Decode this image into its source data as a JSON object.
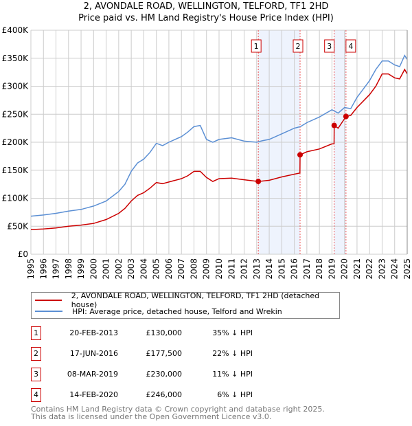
{
  "chart_data": {
    "type": "line",
    "title": "2, AVONDALE ROAD, WELLINGTON, TELFORD, TF1 2HD",
    "subtitle": "Price paid vs. HM Land Registry's House Price Index (HPI)",
    "xlim": [
      1995,
      2025
    ],
    "ylim": [
      0,
      400000
    ],
    "yticks": [
      {
        "v": 0,
        "label": "£0"
      },
      {
        "v": 50000,
        "label": "£50K"
      },
      {
        "v": 100000,
        "label": "£100K"
      },
      {
        "v": 150000,
        "label": "£150K"
      },
      {
        "v": 200000,
        "label": "£200K"
      },
      {
        "v": 250000,
        "label": "£250K"
      },
      {
        "v": 300000,
        "label": "£300K"
      },
      {
        "v": 350000,
        "label": "£350K"
      },
      {
        "v": 400000,
        "label": "£400K"
      }
    ],
    "xticks": [
      "1995",
      "1996",
      "1997",
      "1998",
      "1999",
      "2000",
      "2001",
      "2002",
      "2003",
      "2004",
      "2005",
      "2006",
      "2007",
      "2008",
      "2009",
      "2010",
      "2011",
      "2012",
      "2013",
      "2014",
      "2015",
      "2016",
      "2017",
      "2018",
      "2019",
      "2020",
      "2021",
      "2022",
      "2023",
      "2024",
      "2025"
    ],
    "grid": true,
    "series": [
      {
        "name": "2, AVONDALE ROAD, WELLINGTON, TELFORD, TF1 2HD (detached house)",
        "color": "#cc0000",
        "x": [
          1995,
          1996,
          1997,
          1998,
          1999,
          2000,
          2001,
          2002,
          2002.5,
          2003,
          2003.5,
          2004,
          2004.5,
          2005,
          2005.5,
          2006,
          2007,
          2007.5,
          2008,
          2008.5,
          2009,
          2009.5,
          2010,
          2011,
          2012,
          2013.13,
          2014,
          2015,
          2016,
          2016.45,
          2016.46,
          2017,
          2018,
          2019,
          2019.17,
          2019.18,
          2019.5,
          2020.12,
          2020.5,
          2021,
          2022,
          2022.5,
          2023,
          2023.5,
          2024,
          2024.4,
          2024.8,
          2025
        ],
        "y": [
          44000,
          45000,
          47000,
          50000,
          52000,
          55000,
          62000,
          73000,
          82000,
          95000,
          105000,
          110000,
          118000,
          128000,
          126000,
          129000,
          135000,
          140000,
          148000,
          148000,
          137000,
          130000,
          135000,
          136000,
          133000,
          130000,
          132000,
          138000,
          143000,
          145000,
          177500,
          183000,
          188000,
          197000,
          197000,
          230000,
          225000,
          246000,
          248000,
          262000,
          285000,
          300000,
          322000,
          322000,
          315000,
          313000,
          330000,
          322000
        ]
      },
      {
        "name": "HPI: Average price, detached house, Telford and Wrekin",
        "color": "#5b8fd4",
        "x": [
          1995,
          1996,
          1997,
          1998,
          1999,
          2000,
          2001,
          2002,
          2002.5,
          2003,
          2003.5,
          2004,
          2004.5,
          2005,
          2005.5,
          2006,
          2007,
          2007.5,
          2008,
          2008.5,
          2009,
          2009.5,
          2010,
          2011,
          2012,
          2013,
          2013.5,
          2014,
          2015,
          2016,
          2016.5,
          2017,
          2018,
          2019,
          2019.5,
          2020,
          2020.5,
          2021,
          2021.5,
          2022,
          2022.5,
          2023,
          2023.5,
          2024,
          2024.4,
          2024.8,
          2025
        ],
        "y": [
          68000,
          70000,
          73000,
          77000,
          80000,
          86000,
          95000,
          112000,
          125000,
          148000,
          163000,
          170000,
          182000,
          198000,
          194000,
          200000,
          210000,
          218000,
          228000,
          230000,
          205000,
          200000,
          205000,
          208000,
          202000,
          200000,
          203000,
          205000,
          215000,
          225000,
          228000,
          235000,
          245000,
          258000,
          252000,
          262000,
          260000,
          280000,
          295000,
          310000,
          330000,
          345000,
          345000,
          338000,
          335000,
          355000,
          348000
        ]
      }
    ],
    "sales": [
      {
        "n": "1",
        "x": 2013.13,
        "y": 130000,
        "date": "20-FEB-2013",
        "price": "£130,000",
        "hpi": "35% ↓ HPI"
      },
      {
        "n": "2",
        "x": 2016.46,
        "y": 177500,
        "date": "17-JUN-2016",
        "price": "£177,500",
        "hpi": "22% ↓ HPI"
      },
      {
        "n": "3",
        "x": 2019.18,
        "y": 230000,
        "date": "08-MAR-2019",
        "price": "£230,000",
        "hpi": "11% ↓ HPI"
      },
      {
        "n": "4",
        "x": 2020.12,
        "y": 246000,
        "date": "14-FEB-2020",
        "price": "£246,000",
        "hpi": "6% ↓ HPI"
      }
    ],
    "shaded": [
      [
        2013.13,
        2016.46
      ],
      [
        2019.18,
        2020.12
      ]
    ],
    "legend_position": "below"
  },
  "footer": {
    "line1": "Contains HM Land Registry data © Crown copyright and database right 2025.",
    "line2": "This data is licensed under the Open Government Licence v3.0."
  }
}
